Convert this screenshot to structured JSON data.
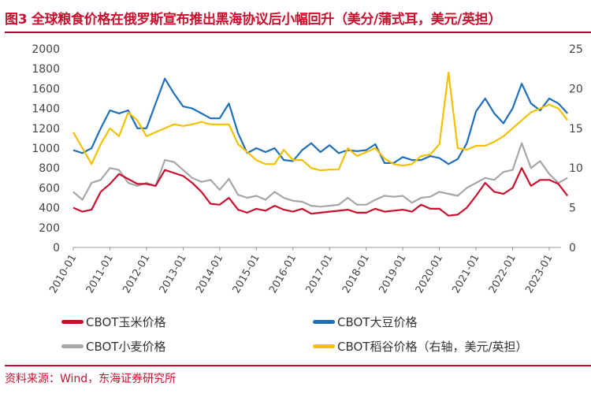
{
  "title": "图3 全球粮食价格在俄罗斯宣布推出黑海协议后小幅回升（美分/蒲式耳，美元/英担）",
  "source": "资料来源：Wind，东海证券研究所",
  "chart_data": {
    "type": "line",
    "title": "图3 全球粮食价格在俄罗斯宣布推出黑海协议后小幅回升（美分/蒲式耳，美元/英担）",
    "ylim_left": [
      0,
      2000
    ],
    "yticks_left": [
      "0",
      "200",
      "400",
      "600",
      "800",
      "1000",
      "1200",
      "1400",
      "1600",
      "1800",
      "2000"
    ],
    "ylim_right": [
      0,
      25
    ],
    "yticks_right": [
      "0",
      "5",
      "10",
      "15",
      "20",
      "25"
    ],
    "xticks": [
      "2010-01",
      "2011-01",
      "2012-01",
      "2013-01",
      "2014-01",
      "2015-01",
      "2016-01",
      "2017-01",
      "2018-01",
      "2019-01",
      "2020-01",
      "2021-01",
      "2022-01",
      "2023-01"
    ],
    "grid": false,
    "legend_placement": "bottom",
    "x": [
      "2010-01",
      "2010-04",
      "2010-07",
      "2010-10",
      "2011-01",
      "2011-04",
      "2011-07",
      "2011-10",
      "2012-01",
      "2012-04",
      "2012-07",
      "2012-10",
      "2013-01",
      "2013-04",
      "2013-07",
      "2013-10",
      "2014-01",
      "2014-04",
      "2014-07",
      "2014-10",
      "2015-01",
      "2015-04",
      "2015-07",
      "2015-10",
      "2016-01",
      "2016-04",
      "2016-07",
      "2016-10",
      "2017-01",
      "2017-04",
      "2017-07",
      "2017-10",
      "2018-01",
      "2018-04",
      "2018-07",
      "2018-10",
      "2019-01",
      "2019-04",
      "2019-07",
      "2019-10",
      "2020-01",
      "2020-04",
      "2020-07",
      "2020-10",
      "2021-01",
      "2021-04",
      "2021-07",
      "2021-10",
      "2022-01",
      "2022-04",
      "2022-07",
      "2022-10",
      "2023-01",
      "2023-04",
      "2023-07"
    ],
    "series": [
      {
        "name": "CBOT玉米价格",
        "axis": "left",
        "color": "#c8102e",
        "values": [
          400,
          360,
          380,
          560,
          640,
          740,
          690,
          640,
          640,
          620,
          780,
          750,
          720,
          650,
          560,
          440,
          430,
          500,
          380,
          350,
          390,
          370,
          420,
          380,
          360,
          390,
          340,
          350,
          360,
          370,
          380,
          350,
          350,
          390,
          360,
          370,
          380,
          360,
          430,
          390,
          390,
          320,
          330,
          400,
          520,
          650,
          560,
          540,
          600,
          800,
          620,
          680,
          680,
          640,
          520
        ]
      },
      {
        "name": "CBOT大豆价格",
        "axis": "left",
        "color": "#1f6fb8",
        "values": [
          980,
          950,
          1000,
          1200,
          1380,
          1350,
          1380,
          1200,
          1200,
          1450,
          1700,
          1550,
          1420,
          1400,
          1350,
          1300,
          1300,
          1450,
          1150,
          950,
          1000,
          960,
          1000,
          880,
          870,
          980,
          1050,
          960,
          1030,
          950,
          980,
          970,
          980,
          1040,
          850,
          850,
          910,
          880,
          880,
          920,
          900,
          840,
          890,
          1050,
          1370,
          1500,
          1350,
          1250,
          1400,
          1650,
          1450,
          1380,
          1500,
          1450,
          1350
        ]
      },
      {
        "name": "CBOT小麦价格",
        "axis": "left",
        "color": "#a6a6a6",
        "values": [
          560,
          480,
          650,
          680,
          800,
          780,
          650,
          620,
          650,
          620,
          880,
          860,
          780,
          700,
          660,
          680,
          580,
          690,
          530,
          500,
          520,
          480,
          560,
          500,
          470,
          460,
          420,
          410,
          420,
          430,
          500,
          430,
          430,
          480,
          520,
          510,
          520,
          450,
          500,
          510,
          560,
          540,
          520,
          600,
          650,
          700,
          680,
          760,
          780,
          1050,
          800,
          870,
          740,
          650,
          700
        ]
      },
      {
        "name": "CBOT稻谷价格（右轴，美元/英担）",
        "axis": "right",
        "color": "#f5c000",
        "values": [
          14.5,
          12.5,
          10.5,
          13,
          15,
          14,
          17,
          16,
          14,
          14.5,
          15,
          15.5,
          15.3,
          15.5,
          15.8,
          15.5,
          15.5,
          15.5,
          13,
          12,
          11,
          10.5,
          10.5,
          12.3,
          11,
          11,
          10,
          9.7,
          9.8,
          9.8,
          12.5,
          11.5,
          12,
          12.5,
          11.2,
          10.5,
          10.3,
          10.5,
          11.5,
          11.7,
          13,
          22,
          12.5,
          12.3,
          12.8,
          12.8,
          13.3,
          14,
          15,
          16,
          17,
          17.5,
          18,
          17.5,
          16
        ]
      }
    ]
  }
}
